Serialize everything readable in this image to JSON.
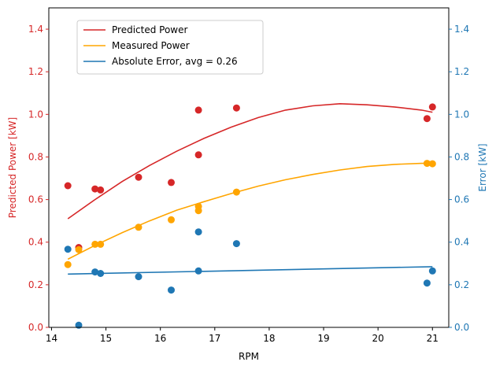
{
  "chart_data": {
    "type": "scatter",
    "xlabel": "RPM",
    "ylabel_left": "Predicted Power [kW]",
    "ylabel_right": "Error [kW]",
    "xlim": [
      13.95,
      21.3
    ],
    "ylim_left": [
      0,
      1.5
    ],
    "ylim_right": [
      0,
      1.5
    ],
    "x_ticks": [
      "14",
      "15",
      "16",
      "17",
      "18",
      "19",
      "20",
      "21"
    ],
    "y_ticks_left": [
      "0.0",
      "0.2",
      "0.4",
      "0.6",
      "0.8",
      "1.0",
      "1.2",
      "1.4"
    ],
    "y_ticks_right": [
      "0.0",
      "0.2",
      "0.4",
      "0.6",
      "0.8",
      "1.0",
      "1.2",
      "1.4"
    ],
    "grid": false,
    "legend_position": "top-left",
    "colors": {
      "predicted": "#d62728",
      "measured": "#ffa500",
      "error": "#1f77b4"
    },
    "series": [
      {
        "name": "Predicted Power",
        "kind": "line",
        "color": "#d62728",
        "x": [
          14.3,
          14.8,
          15.3,
          15.8,
          16.3,
          16.8,
          17.3,
          17.8,
          18.3,
          18.8,
          19.3,
          19.8,
          20.3,
          20.8,
          21.0
        ],
        "y": [
          0.51,
          0.6,
          0.685,
          0.76,
          0.827,
          0.887,
          0.94,
          0.985,
          1.02,
          1.04,
          1.05,
          1.045,
          1.035,
          1.02,
          1.01
        ]
      },
      {
        "name": "Measured Power",
        "kind": "line",
        "color": "#ffa500",
        "x": [
          14.3,
          14.8,
          15.3,
          15.8,
          16.3,
          16.8,
          17.3,
          17.8,
          18.3,
          18.8,
          19.3,
          19.8,
          20.3,
          20.8,
          21.0
        ],
        "y": [
          0.32,
          0.385,
          0.445,
          0.5,
          0.55,
          0.59,
          0.628,
          0.663,
          0.693,
          0.718,
          0.739,
          0.755,
          0.765,
          0.77,
          0.77
        ]
      },
      {
        "name": "Absolute Error, avg = 0.26",
        "kind": "line",
        "color": "#1f77b4",
        "x": [
          14.3,
          21.0
        ],
        "y": [
          0.25,
          0.285
        ]
      },
      {
        "name": "Predicted Power points",
        "kind": "points",
        "color": "#d62728",
        "x": [
          14.3,
          14.5,
          14.8,
          14.9,
          15.6,
          16.2,
          16.7,
          16.7,
          17.4,
          20.9,
          21.0
        ],
        "y": [
          0.665,
          0.375,
          0.65,
          0.645,
          0.705,
          0.68,
          1.02,
          0.81,
          1.03,
          0.98,
          1.035
        ]
      },
      {
        "name": "Measured Power points",
        "kind": "points",
        "color": "#ffa500",
        "x": [
          14.3,
          14.5,
          14.8,
          14.9,
          15.6,
          16.2,
          16.7,
          16.7,
          17.4,
          20.9,
          21.0
        ],
        "y": [
          0.295,
          0.365,
          0.39,
          0.39,
          0.47,
          0.505,
          0.568,
          0.548,
          0.635,
          0.77,
          0.768
        ]
      },
      {
        "name": "Error points",
        "kind": "points",
        "color": "#1f77b4",
        "x": [
          14.3,
          14.5,
          14.8,
          14.9,
          15.6,
          16.2,
          16.7,
          16.7,
          17.4,
          20.9,
          21.0
        ],
        "y": [
          0.367,
          0.01,
          0.26,
          0.253,
          0.238,
          0.175,
          0.448,
          0.265,
          0.393,
          0.208,
          0.265
        ]
      }
    ],
    "legend": [
      "Predicted Power",
      "Measured Power",
      "Absolute Error, avg = 0.26"
    ]
  }
}
